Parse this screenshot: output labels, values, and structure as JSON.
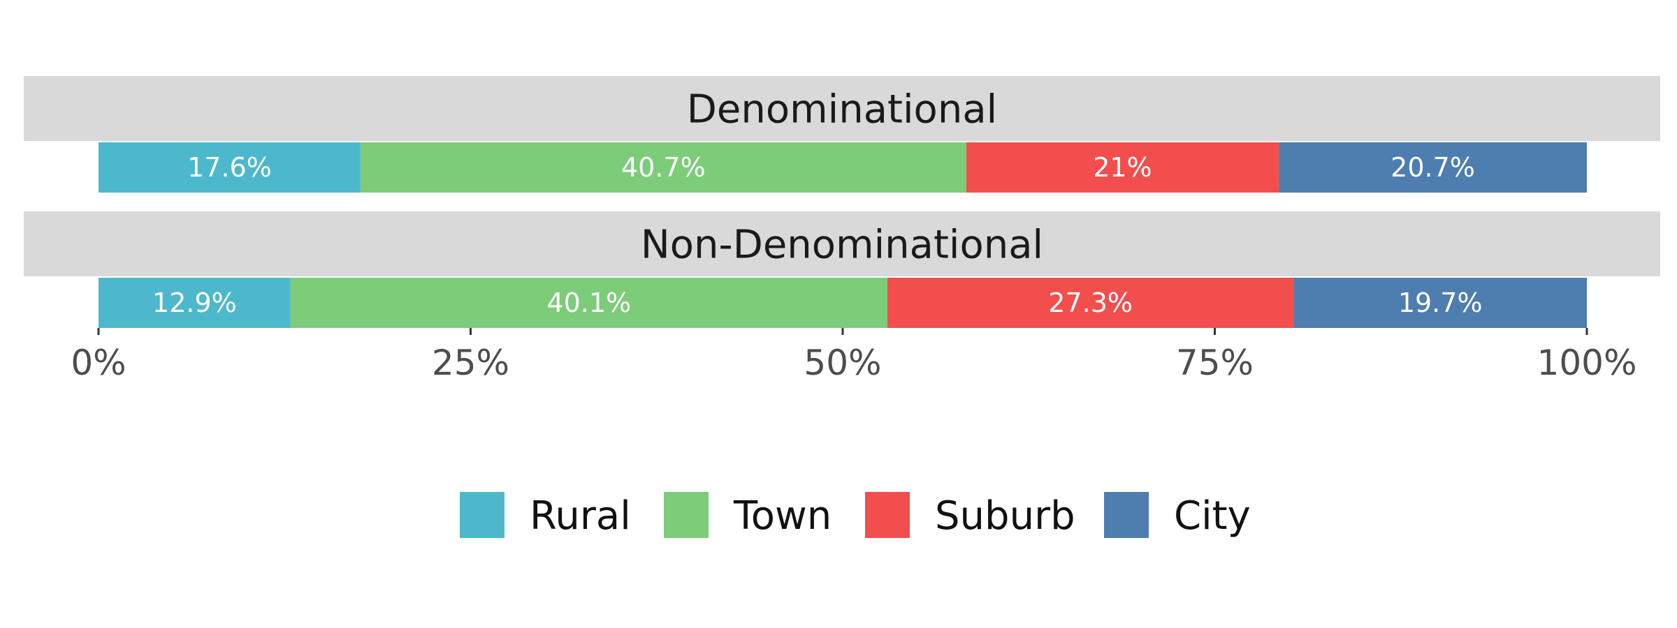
{
  "chart_data": {
    "type": "bar",
    "orientation": "horizontal",
    "stacked": "percent",
    "categories": [
      "Denominational",
      "Non-Denominational"
    ],
    "series": [
      {
        "name": "Rural",
        "color": "#4db8cc",
        "values": [
          17.6,
          12.9
        ],
        "labels": [
          "17.6%",
          "12.9%"
        ]
      },
      {
        "name": "Town",
        "color": "#7ccc7a",
        "values": [
          40.7,
          40.1
        ],
        "labels": [
          "40.7%",
          "40.1%"
        ]
      },
      {
        "name": "Suburb",
        "color": "#f24e4e",
        "values": [
          21,
          27.3
        ],
        "labels": [
          "21%",
          "27.3%"
        ]
      },
      {
        "name": "City",
        "color": "#4e7db0",
        "values": [
          20.7,
          19.7
        ],
        "labels": [
          "20.7%",
          "19.7%"
        ]
      }
    ],
    "xlim": [
      0,
      100
    ],
    "xticks": [
      0,
      25,
      50,
      75,
      100
    ],
    "xtick_labels": [
      "0%",
      "25%",
      "50%",
      "75%",
      "100%"
    ],
    "grid": false,
    "legend": "bottom"
  }
}
